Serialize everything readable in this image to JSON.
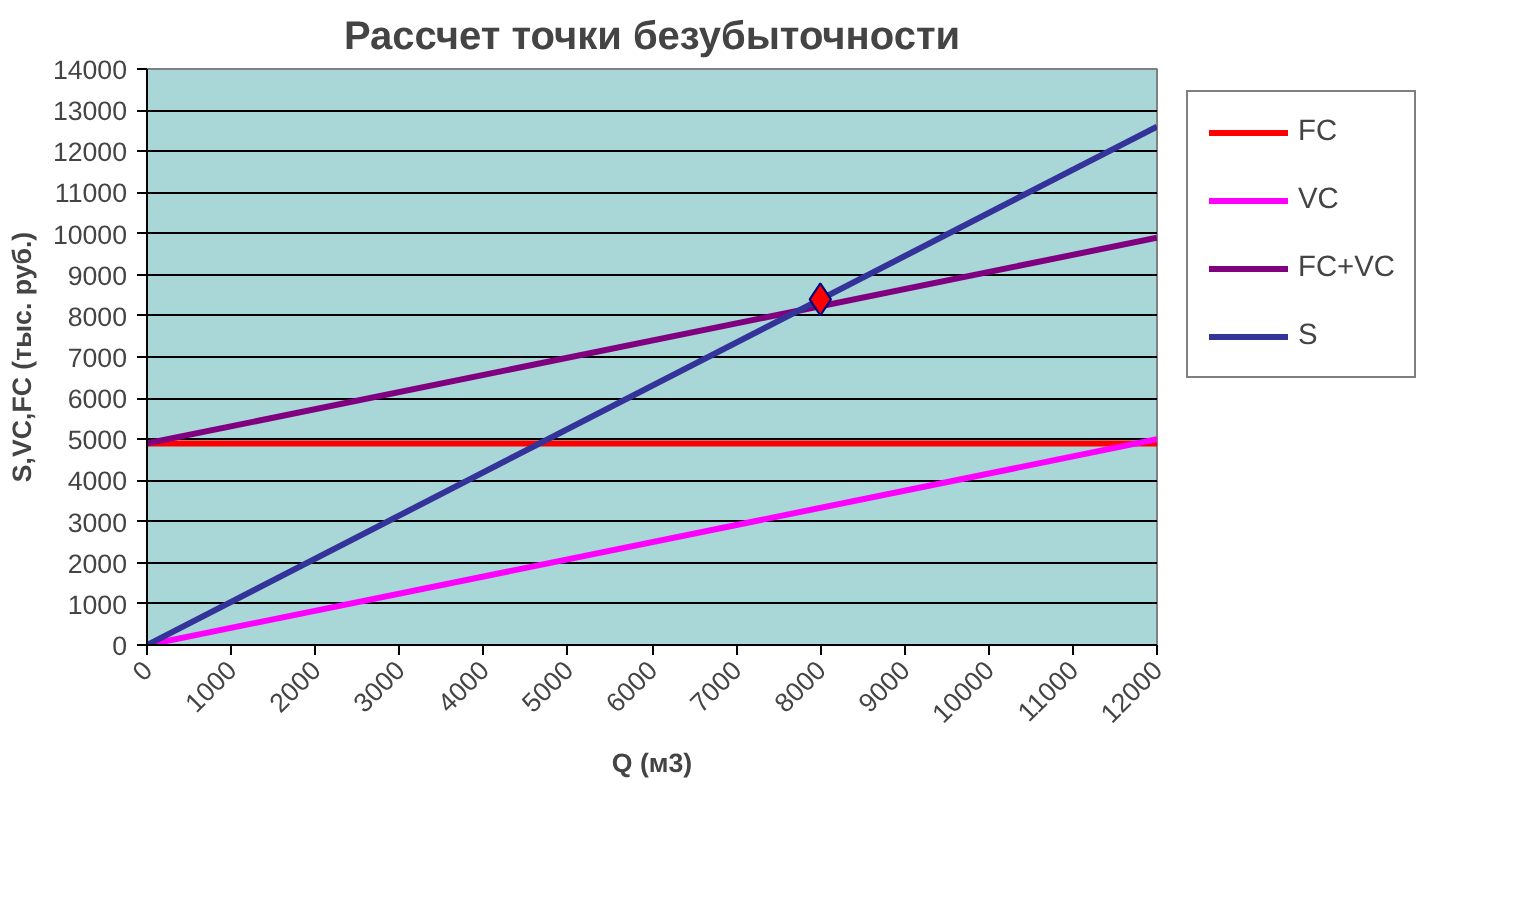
{
  "chart_data": {
    "type": "line",
    "title": "Рассчет точки безубыточности",
    "xlabel": "Q (м3)",
    "ylabel": "S,VC,FC (тыс. руб.)",
    "xlim": [
      0,
      12000
    ],
    "xticks": [
      0,
      1000,
      2000,
      3000,
      4000,
      5000,
      6000,
      7000,
      8000,
      9000,
      10000,
      11000,
      12000
    ],
    "ylim": [
      0,
      14000
    ],
    "yticks": [
      0,
      1000,
      2000,
      3000,
      4000,
      5000,
      6000,
      7000,
      8000,
      9000,
      10000,
      11000,
      12000,
      13000,
      14000
    ],
    "grid": "y",
    "legend": "right",
    "marker": "none",
    "series": [
      {
        "name": "FC",
        "color": "#ff0000",
        "x": [
          0,
          12000
        ],
        "values": [
          4900,
          4900
        ]
      },
      {
        "name": "VC",
        "color": "#ff00ff",
        "x": [
          0,
          12000
        ],
        "values": [
          0,
          5000
        ]
      },
      {
        "name": "FC+VC",
        "color": "#800080",
        "x": [
          0,
          12000
        ],
        "values": [
          4900,
          9900
        ]
      },
      {
        "name": "S",
        "color": "#333399",
        "x": [
          0,
          12000
        ],
        "values": [
          0,
          12600
        ]
      },
      {
        "type": "scatter",
        "marker": "diamond",
        "color": "#ff0000",
        "x": [
          8000
        ],
        "values": [
          8400
        ]
      }
    ]
  }
}
